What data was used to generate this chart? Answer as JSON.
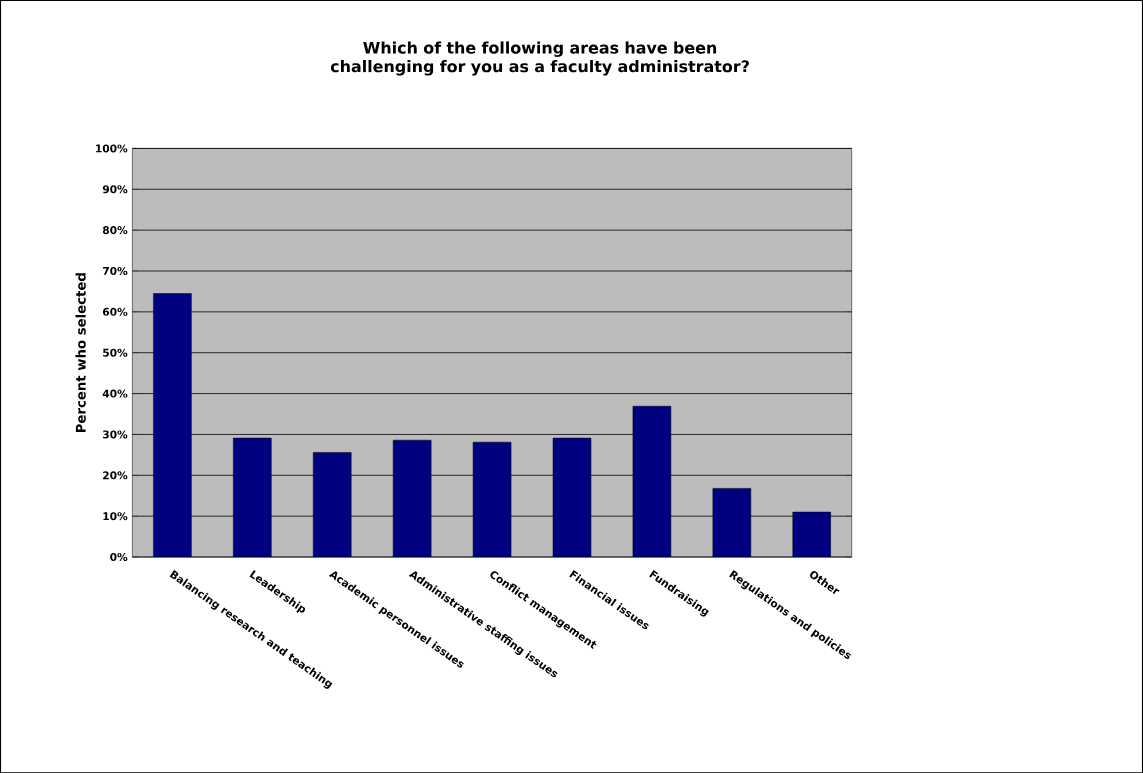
{
  "chart_data": {
    "type": "bar",
    "title": "Which of the following areas have been challenging for you as a faculty administrator?",
    "ylabel": "Percent who selected",
    "categories": [
      "Balancing research and teaching",
      "Leadership",
      "Academic personnel issues",
      "Administrative staffing issues",
      "Conflict management",
      "Financial issues",
      "Fundraising",
      "Regulations and policies",
      "Other"
    ],
    "values": [
      64.5,
      29.1,
      25.6,
      28.6,
      28.1,
      29.1,
      36.9,
      16.8,
      11.0
    ],
    "color": "#000080",
    "ylim": [
      0,
      100
    ],
    "yticks": [
      {
        "value": 0,
        "label": "0%"
      },
      {
        "value": 10,
        "label": "10%"
      },
      {
        "value": 20,
        "label": "20%"
      },
      {
        "value": 30,
        "label": "30%"
      },
      {
        "value": 40,
        "label": "40%"
      },
      {
        "value": 50,
        "label": "50%"
      },
      {
        "value": 60,
        "label": "60%"
      },
      {
        "value": 70,
        "label": "70%"
      },
      {
        "value": 80,
        "label": "80%"
      },
      {
        "value": 90,
        "label": "90%"
      },
      {
        "value": 100,
        "label": "100%"
      }
    ],
    "grid": "y"
  }
}
